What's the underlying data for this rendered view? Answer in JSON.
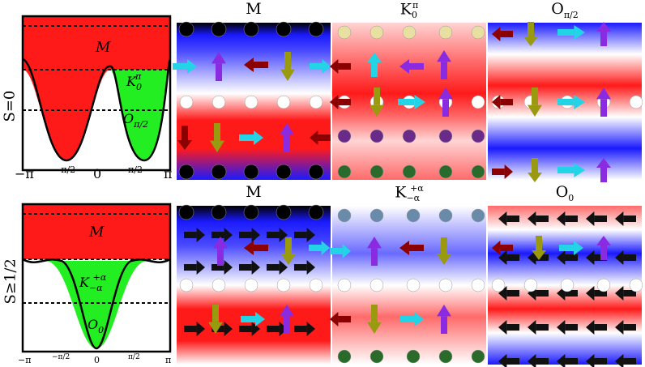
{
  "rows": [
    {
      "spin_label": "S=0",
      "regions": {
        "top": "M",
        "mid": "K",
        "mid_sub": "0",
        "mid_sup": "π",
        "low": "O",
        "low_sub": "π/2"
      },
      "x_ticks": [
        "−π",
        "−",
        "π",
        "2",
        "0",
        "π",
        "2",
        "π"
      ],
      "panels": [
        {
          "title": "M"
        },
        {
          "title": "K",
          "title_sub": "0",
          "title_sup": "π"
        },
        {
          "title": "O",
          "title_sub": "π/2"
        }
      ]
    },
    {
      "spin_label": "S≥1/2",
      "regions": {
        "top": "M",
        "mid": "K",
        "mid_sub": "−α",
        "mid_sup": "+α",
        "low": "O",
        "low_sub": "0"
      },
      "x_ticks": [
        "−π",
        "−",
        "π",
        "2",
        "0",
        "π",
        "2",
        "π"
      ],
      "panels": [
        {
          "title": "M"
        },
        {
          "title": "K",
          "title_sub": "−α",
          "title_sup": "+α"
        },
        {
          "title": "O",
          "title_sub": "0"
        }
      ]
    }
  ],
  "colors": {
    "red": "#ff1a1a",
    "green": "#22ee22",
    "blue": "#1a1aff",
    "arrow_purple": "#8a2be2",
    "arrow_cyan": "#22d4e6",
    "arrow_olive": "#9a9a10",
    "arrow_darkred": "#8b0000",
    "sphere": "#ffffff"
  }
}
